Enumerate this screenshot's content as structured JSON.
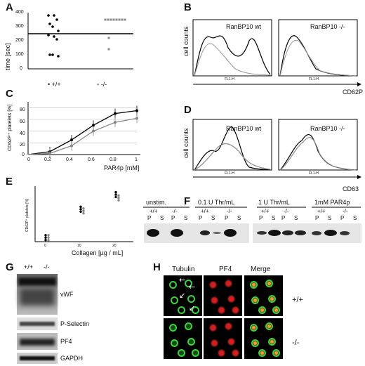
{
  "panels": {
    "A": {
      "letter": "A",
      "ylabel": "time [sec]",
      "yticks": [
        "0",
        "100",
        "200",
        "300",
        "400"
      ],
      "groups": [
        "+/+",
        "-/-"
      ],
      "wt_times": [
        380,
        380,
        350,
        320,
        300,
        270,
        240,
        230,
        210,
        100,
        100,
        90
      ],
      "ko_times": [
        350,
        350,
        350,
        350,
        350,
        350,
        350,
        350,
        220,
        140
      ]
    },
    "B": {
      "letter": "B",
      "left_title": "RanBP10 wt",
      "right_title": "RanBP10 -/-",
      "ylabel": "cell counts",
      "xlabel": "CD62P",
      "axis_small": "FL1-H"
    },
    "C": {
      "letter": "C",
      "ylabel": "CD62P⁺ platelets [%]",
      "xlabel": "PAR4p [mM]",
      "xticks": [
        "0",
        "0.2",
        "0.4",
        "0.6",
        "0.8",
        "1"
      ],
      "yticks": [
        "0",
        "20",
        "40",
        "60",
        "80"
      ]
    },
    "D": {
      "letter": "D",
      "left_title": "RanBP10 wt",
      "right_title": "RanBP10 -/-",
      "ylabel": "cell counts",
      "xlabel": "CD63",
      "axis_small": "FL1-H"
    },
    "E": {
      "letter": "E",
      "ylabel": "CD62P⁺ platelets [%]",
      "xlabel": "Collagen [µg / mL]",
      "xticks": [
        "0",
        "10",
        "20"
      ]
    },
    "F": {
      "letter": "F",
      "conditions": [
        "unstim.",
        "0.1 U Thr/mL",
        "1 U Thr/mL",
        "1mM PAR4p"
      ],
      "genotypes": [
        "+/+",
        "-/-"
      ],
      "fractions": [
        "P",
        "S"
      ]
    },
    "G": {
      "letter": "G",
      "genotypes": [
        "+/+",
        "-/-"
      ],
      "labels": [
        "vWF",
        "P-Selectin",
        "PF4",
        "GAPDH"
      ]
    },
    "H": {
      "letter": "H",
      "columns": [
        "Tubulin",
        "PF4",
        "Merge"
      ],
      "rows": [
        "+/+",
        "-/-"
      ]
    }
  },
  "chart_data": [
    {
      "type": "scatter",
      "title": "",
      "ylabel": "time [sec]",
      "categories": [
        "+/+",
        "-/-"
      ],
      "ylim": [
        0,
        400
      ],
      "series": [
        {
          "name": "+/+",
          "values": [
            380,
            380,
            350,
            320,
            300,
            270,
            240,
            230,
            210,
            100,
            100,
            90
          ]
        },
        {
          "name": "-/-",
          "values": [
            350,
            350,
            350,
            350,
            350,
            350,
            350,
            350,
            220,
            140
          ]
        }
      ]
    },
    {
      "type": "line",
      "title": "",
      "xlabel": "PAR4p [mM]",
      "ylabel": "CD62P⁺ platelets [%]",
      "x": [
        0,
        0.2,
        0.4,
        0.6,
        0.8,
        1
      ],
      "ylim": [
        0,
        90
      ],
      "series": [
        {
          "name": "+/+",
          "values": [
            0,
            5,
            25,
            50,
            70,
            75
          ]
        },
        {
          "name": "-/-",
          "values": [
            0,
            2,
            15,
            40,
            55,
            62
          ]
        }
      ]
    },
    {
      "type": "scatter",
      "title": "",
      "xlabel": "Collagen [µg / mL]",
      "ylabel": "CD62P⁺ platelets [%]",
      "x": [
        0,
        10,
        20
      ],
      "series": [
        {
          "name": "+/+",
          "values": [
            5,
            40,
            58
          ]
        },
        {
          "name": "-/-",
          "values": [
            5,
            38,
            54
          ]
        }
      ]
    }
  ],
  "colors": {
    "wt": "#000000",
    "ko": "#888888",
    "green": "#39d43a",
    "red": "#d22020"
  }
}
